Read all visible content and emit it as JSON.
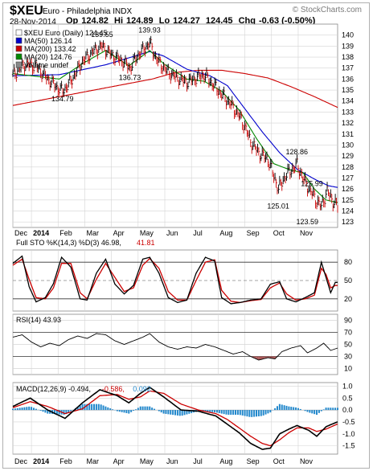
{
  "header": {
    "symbol": "$XEU",
    "name": "Euro - Philadelphia INDX",
    "date": "28-Nov-2014",
    "open_label": "Op",
    "open": "124.82",
    "high_label": "Hi",
    "high": "124.89",
    "low_label": "Lo",
    "low": "124.27",
    "close": "124.45",
    "change_label": "Chg",
    "change": "-0.63 (-0.50%)",
    "watermark": "© StockCharts.com"
  },
  "colors": {
    "up": "#000000",
    "down": "#cc0000",
    "ma50": "#0000cc",
    "ma200": "#cc0000",
    "ma20": "#008800",
    "sto_k": "#000000",
    "sto_d": "#cc0000",
    "macd": "#000000",
    "signal": "#cc0000",
    "hist": "#2288cc",
    "rsi_fill": "#aa5555",
    "grid": "#d4d4d4",
    "panel_bg": "#ffffff"
  },
  "chart_data": [
    {
      "type": "line",
      "panel": "price",
      "legend": [
        {
          "text": "$XEU Euro (Daily) 124.45",
          "color": "#000000"
        },
        {
          "text": "MA(50) 126.14",
          "color": "#0000cc"
        },
        {
          "text": "MA(200) 133.42",
          "color": "#cc0000"
        },
        {
          "text": "MA(20) 124.76",
          "color": "#008800"
        },
        {
          "text": "Volume undef",
          "color": "#888888"
        }
      ],
      "ylim": [
        122.5,
        141
      ],
      "yticks": [
        123,
        124,
        125,
        126,
        127,
        128,
        129,
        130,
        131,
        132,
        133,
        134,
        135,
        136,
        137,
        138,
        139,
        140
      ],
      "x_months": [
        "Dec",
        "2014",
        "Feb",
        "Mar",
        "Apr",
        "May",
        "Jun",
        "Jul",
        "Aug",
        "Sep",
        "Oct",
        "Nov"
      ],
      "annotations": [
        {
          "t": 43,
          "v": 134.79,
          "label": "134.79"
        },
        {
          "t": 77,
          "v": 139.55,
          "label": "139.55"
        },
        {
          "t": 101,
          "v": 136.73,
          "label": "136.73"
        },
        {
          "t": 118,
          "v": 139.93,
          "label": "139.93"
        },
        {
          "t": 229,
          "v": 125.01,
          "label": "125.01"
        },
        {
          "t": 245,
          "v": 128.86,
          "label": "128.86"
        },
        {
          "t": 258,
          "v": 125.99,
          "label": "125.99"
        },
        {
          "t": 254,
          "v": 123.59,
          "label": "123.59"
        }
      ],
      "price_key": [
        [
          0,
          136.4
        ],
        [
          10,
          137.3
        ],
        [
          20,
          137.2
        ],
        [
          30,
          136.0
        ],
        [
          40,
          135.1
        ],
        [
          43,
          134.9
        ],
        [
          50,
          135.8
        ],
        [
          60,
          137.6
        ],
        [
          70,
          138.6
        ],
        [
          77,
          139.0
        ],
        [
          85,
          138.2
        ],
        [
          95,
          137.6
        ],
        [
          101,
          137.0
        ],
        [
          108,
          138.2
        ],
        [
          118,
          139.3
        ],
        [
          124,
          137.8
        ],
        [
          132,
          136.8
        ],
        [
          140,
          136.2
        ],
        [
          150,
          135.7
        ],
        [
          158,
          136.1
        ],
        [
          165,
          136.4
        ],
        [
          172,
          135.6
        ],
        [
          180,
          134.6
        ],
        [
          188,
          133.7
        ],
        [
          195,
          132.7
        ],
        [
          200,
          131.7
        ],
        [
          205,
          130.3
        ],
        [
          212,
          129.3
        ],
        [
          220,
          128.7
        ],
        [
          229,
          126.0
        ],
        [
          235,
          127.2
        ],
        [
          245,
          128.2
        ],
        [
          252,
          126.6
        ],
        [
          258,
          125.6
        ],
        [
          262,
          124.9
        ],
        [
          266,
          124.4
        ],
        [
          271,
          125.8
        ],
        [
          276,
          124.9
        ],
        [
          280,
          124.45
        ]
      ],
      "ma50_key": [
        [
          0,
          136.3
        ],
        [
          40,
          136.4
        ],
        [
          80,
          137.3
        ],
        [
          118,
          138.5
        ],
        [
          130,
          138.1
        ],
        [
          150,
          136.9
        ],
        [
          170,
          136.3
        ],
        [
          185,
          135.4
        ],
        [
          200,
          133.3
        ],
        [
          215,
          131.2
        ],
        [
          230,
          129.3
        ],
        [
          245,
          127.8
        ],
        [
          260,
          126.9
        ],
        [
          272,
          126.3
        ],
        [
          280,
          126.14
        ]
      ],
      "ma200_key": [
        [
          0,
          133.6
        ],
        [
          30,
          134.2
        ],
        [
          60,
          134.8
        ],
        [
          100,
          135.6
        ],
        [
          120,
          136.0
        ],
        [
          140,
          136.6
        ],
        [
          160,
          136.8
        ],
        [
          180,
          136.8
        ],
        [
          200,
          136.5
        ],
        [
          220,
          136.1
        ],
        [
          240,
          135.3
        ],
        [
          260,
          134.4
        ],
        [
          280,
          133.42
        ]
      ],
      "ma20_key": [
        [
          0,
          136.5
        ],
        [
          40,
          136.0
        ],
        [
          60,
          137.4
        ],
        [
          80,
          138.6
        ],
        [
          100,
          137.2
        ],
        [
          118,
          138.6
        ],
        [
          130,
          137.4
        ],
        [
          150,
          136.0
        ],
        [
          165,
          135.8
        ],
        [
          180,
          134.9
        ],
        [
          195,
          133.2
        ],
        [
          210,
          130.6
        ],
        [
          225,
          128.3
        ],
        [
          240,
          127.7
        ],
        [
          250,
          127.5
        ],
        [
          260,
          126.0
        ],
        [
          270,
          125.0
        ],
        [
          280,
          124.76
        ]
      ]
    },
    {
      "type": "line",
      "panel": "stochastic",
      "legend": [
        {
          "text": "Full STO %K(14,3) %D(3) 46.98,",
          "color": "#000000"
        },
        {
          "text": "41.81",
          "color": "#cc0000"
        }
      ],
      "ylim": [
        0,
        100
      ],
      "yticks": [
        20,
        50,
        80
      ],
      "k_key": [
        [
          0,
          78
        ],
        [
          8,
          90
        ],
        [
          14,
          40
        ],
        [
          20,
          15
        ],
        [
          28,
          22
        ],
        [
          35,
          45
        ],
        [
          42,
          88
        ],
        [
          50,
          72
        ],
        [
          58,
          20
        ],
        [
          64,
          18
        ],
        [
          72,
          62
        ],
        [
          80,
          85
        ],
        [
          88,
          44
        ],
        [
          96,
          28
        ],
        [
          104,
          42
        ],
        [
          112,
          85
        ],
        [
          118,
          88
        ],
        [
          126,
          62
        ],
        [
          134,
          22
        ],
        [
          142,
          14
        ],
        [
          150,
          18
        ],
        [
          158,
          62
        ],
        [
          166,
          88
        ],
        [
          174,
          82
        ],
        [
          180,
          22
        ],
        [
          188,
          12
        ],
        [
          196,
          14
        ],
        [
          205,
          18
        ],
        [
          214,
          20
        ],
        [
          222,
          44
        ],
        [
          230,
          48
        ],
        [
          236,
          20
        ],
        [
          244,
          15
        ],
        [
          252,
          22
        ],
        [
          260,
          30
        ],
        [
          266,
          80
        ],
        [
          270,
          55
        ],
        [
          274,
          30
        ],
        [
          278,
          46.98
        ],
        [
          280,
          46.98
        ]
      ],
      "d_key": [
        [
          0,
          75
        ],
        [
          8,
          85
        ],
        [
          14,
          52
        ],
        [
          20,
          22
        ],
        [
          28,
          20
        ],
        [
          35,
          38
        ],
        [
          42,
          78
        ],
        [
          50,
          78
        ],
        [
          58,
          30
        ],
        [
          64,
          20
        ],
        [
          72,
          52
        ],
        [
          80,
          78
        ],
        [
          88,
          55
        ],
        [
          96,
          32
        ],
        [
          104,
          38
        ],
        [
          112,
          75
        ],
        [
          118,
          86
        ],
        [
          126,
          70
        ],
        [
          134,
          32
        ],
        [
          142,
          18
        ],
        [
          150,
          18
        ],
        [
          158,
          50
        ],
        [
          166,
          80
        ],
        [
          174,
          84
        ],
        [
          180,
          34
        ],
        [
          188,
          16
        ],
        [
          196,
          14
        ],
        [
          205,
          17
        ],
        [
          214,
          19
        ],
        [
          222,
          38
        ],
        [
          230,
          46
        ],
        [
          236,
          28
        ],
        [
          244,
          18
        ],
        [
          252,
          20
        ],
        [
          260,
          26
        ],
        [
          266,
          70
        ],
        [
          270,
          60
        ],
        [
          274,
          38
        ],
        [
          278,
          41.81
        ],
        [
          280,
          41.81
        ]
      ]
    },
    {
      "type": "line",
      "panel": "rsi",
      "legend": [
        {
          "text": "RSI(14) 43.93",
          "color": "#000000"
        }
      ],
      "ylim": [
        0,
        100
      ],
      "yticks": [
        10,
        30,
        50,
        70,
        90
      ],
      "rsi_key": [
        [
          0,
          62
        ],
        [
          8,
          66
        ],
        [
          16,
          54
        ],
        [
          24,
          46
        ],
        [
          32,
          52
        ],
        [
          40,
          48
        ],
        [
          48,
          58
        ],
        [
          56,
          64
        ],
        [
          64,
          60
        ],
        [
          72,
          68
        ],
        [
          80,
          66
        ],
        [
          88,
          56
        ],
        [
          96,
          50
        ],
        [
          104,
          56
        ],
        [
          112,
          62
        ],
        [
          118,
          68
        ],
        [
          126,
          54
        ],
        [
          134,
          46
        ],
        [
          142,
          42
        ],
        [
          150,
          46
        ],
        [
          158,
          44
        ],
        [
          166,
          50
        ],
        [
          174,
          46
        ],
        [
          182,
          40
        ],
        [
          190,
          34
        ],
        [
          198,
          38
        ],
        [
          205,
          30
        ],
        [
          212,
          24
        ],
        [
          220,
          28
        ],
        [
          226,
          26
        ],
        [
          232,
          38
        ],
        [
          240,
          44
        ],
        [
          248,
          48
        ],
        [
          254,
          36
        ],
        [
          262,
          44
        ],
        [
          268,
          52
        ],
        [
          274,
          40
        ],
        [
          280,
          43.93
        ]
      ]
    },
    {
      "type": "line",
      "panel": "macd",
      "legend": [
        {
          "text": "MACD(12,26,9) -0.494,",
          "color": "#000000"
        },
        {
          "text": "-0.586,",
          "color": "#cc0000"
        },
        {
          "text": "0.092",
          "color": "#2288cc"
        }
      ],
      "ylim": [
        -1.85,
        1.15
      ],
      "yticks": [
        -1.5,
        -1.0,
        -0.5,
        0.0,
        0.5,
        1.0
      ],
      "macd_key": [
        [
          0,
          0.15
        ],
        [
          15,
          0.5
        ],
        [
          30,
          0.0
        ],
        [
          45,
          -0.35
        ],
        [
          60,
          0.3
        ],
        [
          75,
          0.85
        ],
        [
          90,
          0.6
        ],
        [
          100,
          0.3
        ],
        [
          110,
          0.7
        ],
        [
          118,
          0.95
        ],
        [
          130,
          0.55
        ],
        [
          145,
          0.0
        ],
        [
          160,
          -0.05
        ],
        [
          175,
          -0.25
        ],
        [
          185,
          -0.6
        ],
        [
          195,
          -0.95
        ],
        [
          205,
          -1.4
        ],
        [
          215,
          -1.65
        ],
        [
          222,
          -1.6
        ],
        [
          230,
          -1.0
        ],
        [
          238,
          -0.8
        ],
        [
          245,
          -0.65
        ],
        [
          255,
          -0.85
        ],
        [
          262,
          -1.1
        ],
        [
          270,
          -0.7
        ],
        [
          280,
          -0.494
        ]
      ],
      "signal_key": [
        [
          0,
          0.1
        ],
        [
          15,
          0.35
        ],
        [
          30,
          0.15
        ],
        [
          45,
          -0.15
        ],
        [
          60,
          0.05
        ],
        [
          75,
          0.6
        ],
        [
          90,
          0.65
        ],
        [
          100,
          0.45
        ],
        [
          110,
          0.55
        ],
        [
          118,
          0.8
        ],
        [
          130,
          0.7
        ],
        [
          145,
          0.25
        ],
        [
          160,
          0.0
        ],
        [
          175,
          -0.15
        ],
        [
          185,
          -0.4
        ],
        [
          195,
          -0.75
        ],
        [
          205,
          -1.1
        ],
        [
          215,
          -1.4
        ],
        [
          222,
          -1.5
        ],
        [
          230,
          -1.25
        ],
        [
          238,
          -0.95
        ],
        [
          245,
          -0.75
        ],
        [
          255,
          -0.75
        ],
        [
          262,
          -0.9
        ],
        [
          270,
          -0.8
        ],
        [
          280,
          -0.586
        ]
      ]
    }
  ]
}
